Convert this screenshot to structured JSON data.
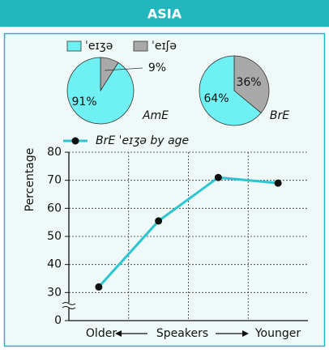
{
  "header": {
    "title": "ASIA"
  },
  "legend": {
    "items": [
      {
        "name": "ˈeɪʒə",
        "color": "#6ff0f2"
      },
      {
        "name": "ˈeɪʃə",
        "color": "#a9a9a9"
      }
    ]
  },
  "chart_data": [
    {
      "type": "pie",
      "label": "AmE",
      "values": [
        91,
        9
      ],
      "value_labels": [
        "91%",
        "9%"
      ]
    },
    {
      "type": "pie",
      "label": "BrE",
      "values": [
        64,
        36
      ],
      "value_labels": [
        "64%",
        "36%"
      ]
    },
    {
      "type": "line",
      "ylabel": "Percentage",
      "x_annotations": {
        "left": "Older",
        "center": "Speakers",
        "right": "Younger"
      },
      "categories": [
        null,
        null,
        null,
        null
      ],
      "series": [
        {
          "name": "BrE ˈeɪʒə by age",
          "color": "#2bc6cf",
          "values": [
            32,
            55.5,
            71,
            69
          ]
        }
      ],
      "ylim": [
        20,
        80
      ],
      "yticks": [
        0,
        30,
        40,
        50,
        60,
        70,
        80
      ],
      "axis_break": true,
      "grid": true
    }
  ]
}
